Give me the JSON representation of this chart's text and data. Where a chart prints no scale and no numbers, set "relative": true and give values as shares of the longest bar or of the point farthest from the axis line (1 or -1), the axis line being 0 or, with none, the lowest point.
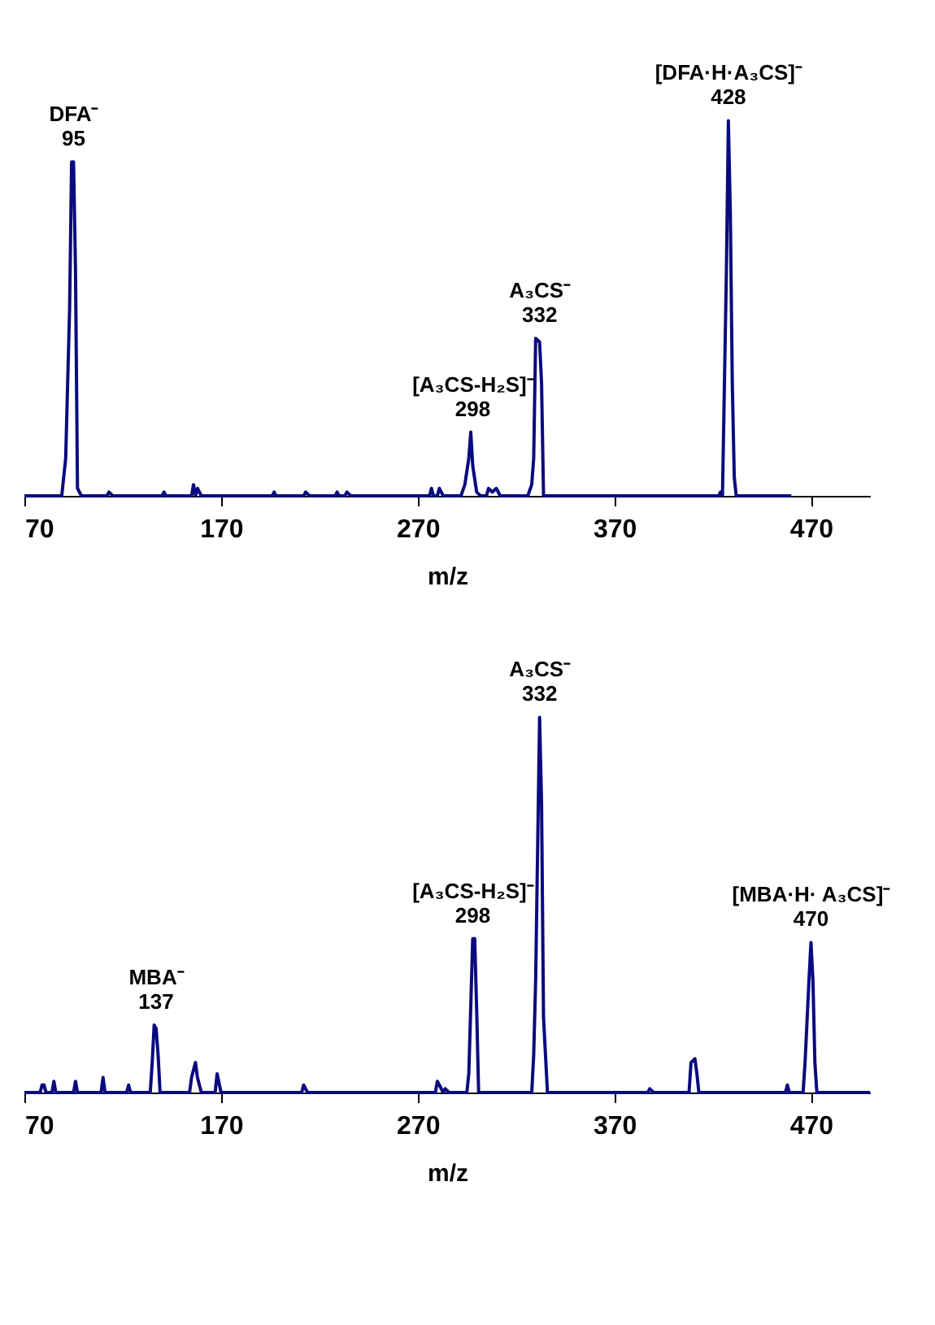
{
  "chart_data": [
    {
      "type": "line",
      "relative": true,
      "xlabel": "m/z",
      "xlim": [
        70,
        500
      ],
      "xticks": [
        70,
        170,
        270,
        370,
        470
      ],
      "grid": false,
      "marker": "none",
      "line_style": "solid",
      "series": [
        {
          "color": "#0a0a80",
          "x": [
            70,
            89,
            91,
            93,
            94,
            95,
            96,
            97,
            99,
            100,
            112,
            113,
            115,
            140,
            141,
            142,
            155,
            156,
            157,
            158,
            160,
            196,
            197,
            198,
            212,
            213,
            215,
            228,
            229,
            230,
            233,
            234,
            236,
            276,
            277,
            278,
            280,
            281,
            283,
            292,
            294,
            296,
            297,
            298,
            300,
            302,
            305,
            306,
            308,
            310,
            312,
            326,
            328,
            329,
            330,
            332,
            333,
            334,
            423,
            424,
            425,
            426,
            427,
            428,
            429,
            430,
            431,
            432,
            460
          ],
          "values": [
            0,
            0,
            0.1,
            0.5,
            0.89,
            0.89,
            0.6,
            0.02,
            0,
            0,
            0,
            0.01,
            0,
            0,
            0.01,
            0,
            0,
            0.03,
            0,
            0.02,
            0,
            0,
            0.01,
            0,
            0,
            0.01,
            0,
            0,
            0.01,
            0,
            0,
            0.01,
            0,
            0,
            0.02,
            0,
            0,
            0.02,
            0,
            0,
            0.03,
            0.1,
            0.17,
            0.08,
            0.01,
            0,
            0,
            0.02,
            0.01,
            0.02,
            0,
            0,
            0.03,
            0.1,
            0.42,
            0.41,
            0.3,
            0,
            0,
            0.01,
            0,
            0.3,
            0.6,
            1,
            0.75,
            0.3,
            0.05,
            0,
            0
          ]
        }
      ],
      "annotations": [
        {
          "text": "DFA⁻\n95",
          "x": 95,
          "y": 0.89
        },
        {
          "text": "[A₃CS-H₂S]⁻\n298",
          "x": 298,
          "y": 0.17
        },
        {
          "text": "A₃CS⁻\n332",
          "x": 332,
          "y": 0.42
        },
        {
          "text": "[DFA·H·A₃CS]⁻\n428",
          "x": 428,
          "y": 1
        }
      ]
    },
    {
      "type": "line",
      "relative": true,
      "xlabel": "m/z",
      "xlim": [
        70,
        500
      ],
      "xticks": [
        70,
        170,
        270,
        370,
        470
      ],
      "grid": false,
      "marker": "none",
      "line_style": "solid",
      "series": [
        {
          "color": "#0a0a80",
          "x": [
            70,
            78,
            79,
            80,
            81,
            84,
            85,
            86,
            95,
            96,
            97,
            109,
            110,
            111,
            122,
            123,
            124,
            134,
            135,
            136,
            137,
            138,
            139,
            154,
            155,
            157,
            158,
            160,
            167,
            168,
            170,
            211,
            212,
            214,
            279,
            280,
            281,
            283,
            284,
            286,
            295,
            296,
            298,
            299,
            300,
            301,
            328,
            329,
            330,
            332,
            333,
            334,
            335,
            336,
            387,
            388,
            390,
            408,
            409,
            411,
            412,
            413,
            457,
            458,
            459,
            466,
            467,
            469,
            470,
            471,
            472,
            473,
            500
          ],
          "values": [
            0,
            0,
            0.02,
            0.02,
            0,
            0,
            0.03,
            0,
            0,
            0.03,
            0,
            0,
            0.04,
            0,
            0,
            0.02,
            0,
            0,
            0.08,
            0.18,
            0.17,
            0.1,
            0,
            0,
            0.04,
            0.08,
            0.04,
            0,
            0,
            0.05,
            0,
            0,
            0.02,
            0,
            0,
            0.03,
            0.02,
            0,
            0.01,
            0,
            0,
            0.05,
            0.41,
            0.41,
            0.22,
            0,
            0,
            0.1,
            0.3,
            1,
            0.77,
            0.2,
            0.1,
            0,
            0,
            0.01,
            0,
            0,
            0.08,
            0.09,
            0.05,
            0,
            0,
            0.02,
            0,
            0,
            0.08,
            0.3,
            0.4,
            0.3,
            0.08,
            0,
            0
          ]
        }
      ],
      "annotations": [
        {
          "text": "MBA⁻\n137",
          "x": 137,
          "y": 0.18
        },
        {
          "text": "[A₃CS-H₂S]⁻\n298",
          "x": 298,
          "y": 0.41
        },
        {
          "text": "A₃CS⁻\n332",
          "x": 332,
          "y": 1
        },
        {
          "text": "[MBA·H· A₃CS]⁻\n470",
          "x": 470,
          "y": 0.4
        }
      ]
    }
  ]
}
